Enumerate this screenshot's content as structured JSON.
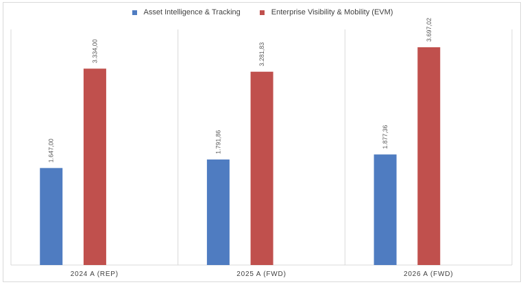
{
  "chart_data": {
    "type": "bar",
    "title": "",
    "xlabel": "",
    "ylabel": "",
    "categories": [
      "2024 A (REP)",
      "2025 A (FWD)",
      "2026 A (FWD)"
    ],
    "series": [
      {
        "name": "Asset Intelligence & Tracking",
        "color": "#4f7cc1",
        "values": [
          1647.0,
          1791.86,
          1877.36
        ],
        "labels": [
          "1.647,00",
          "1.791,86",
          "1.877,36"
        ]
      },
      {
        "name": "Enterprise Visibility & Mobility (EVM)",
        "color": "#c0504d",
        "values": [
          3334.0,
          3281.83,
          3697.02
        ],
        "labels": [
          "3.334,00",
          "3.281,83",
          "3.697,02"
        ]
      }
    ],
    "ylim": [
      0,
      4000
    ],
    "grid": false,
    "legend": "top-center"
  }
}
